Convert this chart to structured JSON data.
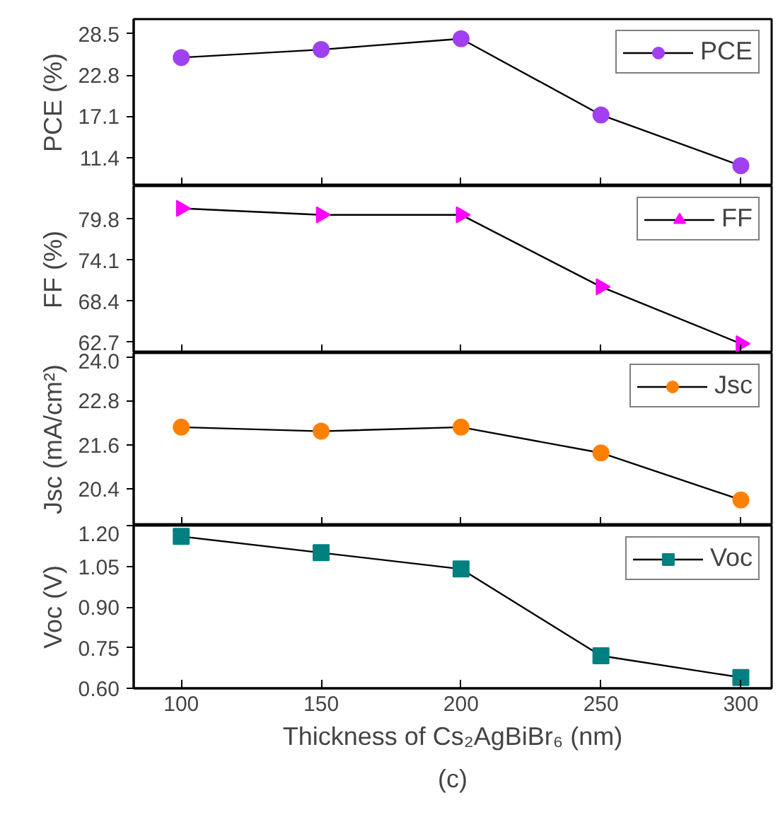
{
  "chart_data": [
    {
      "type": "line",
      "ylabel": "PCE (%)",
      "x": [
        100,
        150,
        200,
        250,
        300
      ],
      "series": [
        {
          "name": "PCE",
          "color": "#a040f0",
          "values": [
            25.2,
            26.3,
            27.8,
            17.3,
            10.3
          ]
        }
      ],
      "marker": "circle",
      "xlim": [
        83,
        311
      ],
      "xticks": [
        100,
        150,
        200,
        250,
        300
      ],
      "ylim": [
        7.5,
        30.5
      ],
      "yticks": [
        11.4,
        17.1,
        22.8,
        28.5
      ],
      "tick_labels": "y",
      "legend": "top right",
      "grid": false
    },
    {
      "type": "line",
      "ylabel": "FF (%)",
      "x": [
        100,
        150,
        200,
        250,
        300
      ],
      "series": [
        {
          "name": "FF",
          "color": "#ff00ff",
          "values": [
            81.3,
            80.4,
            80.4,
            70.4,
            62.5
          ]
        }
      ],
      "marker": "triangle",
      "xlim": [
        83,
        311
      ],
      "xticks": [
        100,
        150,
        200,
        250,
        300
      ],
      "ylim": [
        61.2,
        84.4
      ],
      "yticks": [
        62.7,
        68.4,
        74.1,
        79.8
      ],
      "tick_labels": "y",
      "legend": "top right",
      "grid": false
    },
    {
      "type": "line",
      "ylabel": "Jsc (mA/cm²)",
      "x": [
        100,
        150,
        200,
        250,
        300
      ],
      "series": [
        {
          "name": "Jsc",
          "color": "#ff8000",
          "values": [
            22.08,
            21.97,
            22.08,
            21.38,
            20.1
          ]
        }
      ],
      "marker": "circle",
      "xlim": [
        83,
        311
      ],
      "xticks": [
        100,
        150,
        200,
        250,
        300
      ],
      "ylim": [
        19.4,
        24.1
      ],
      "yticks": [
        20.4,
        21.6,
        22.8,
        {
          "value": 24.0,
          "label": "24.0"
        }
      ],
      "tick_labels": "y",
      "legend": "top right",
      "grid": false
    },
    {
      "type": "line",
      "ylabel": "Voc (V)",
      "xlabel": "Thickness of Cs₂AgBiBr₆ (nm)",
      "annotations": [
        "(c)"
      ],
      "x": [
        100,
        150,
        200,
        250,
        300
      ],
      "series": [
        {
          "name": "Voc",
          "color": "#008080",
          "values": [
            1.16,
            1.1,
            1.04,
            0.72,
            0.64
          ]
        }
      ],
      "marker": "square",
      "xlim": [
        83,
        311
      ],
      "xticks": [
        100,
        150,
        200,
        250,
        300
      ],
      "ylim": [
        0.6,
        1.2
      ],
      "yticks": [
        {
          "value": 0.6,
          "label": "0.60"
        },
        0.75,
        {
          "value": 0.9,
          "label": "0.90"
        },
        1.05,
        {
          "value": 1.2,
          "label": "1.20"
        }
      ],
      "legend": "top right",
      "grid": false
    }
  ]
}
